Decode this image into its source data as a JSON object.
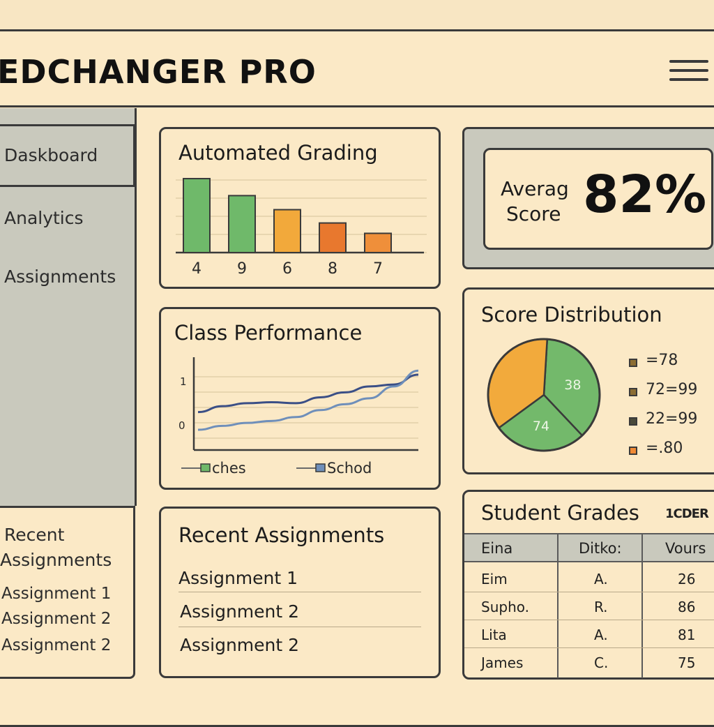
{
  "app": {
    "title": "EDCHANGER PRO"
  },
  "sidebar": {
    "items": [
      {
        "label": "Daskboard"
      },
      {
        "label": "Analytics"
      },
      {
        "label": "Assignments"
      }
    ],
    "recent": {
      "title_line1": "Recent",
      "title_line2": "Assignments",
      "items": [
        "Assignment 1",
        "Assignment 2",
        "Assignment 2"
      ]
    }
  },
  "grading": {
    "title": "Automated Grading",
    "chart_data": {
      "type": "bar",
      "categories": [
        "4",
        "9",
        "6",
        "8",
        "7"
      ],
      "values": [
        100,
        77,
        58,
        40,
        26
      ],
      "colors": [
        "#6fb96a",
        "#6fb96a",
        "#f2a93b",
        "#e8782e",
        "#ef8f3a"
      ]
    }
  },
  "average": {
    "label_line1": "Averag",
    "label_line2": "Score",
    "value": "82%"
  },
  "performance": {
    "title": "Class Performance",
    "chart_data": {
      "type": "line",
      "y_tick_labels": [
        "1",
        "0"
      ],
      "series": [
        {
          "name": "ches",
          "color": "#3b4f86",
          "values": [
            30,
            36,
            39,
            40,
            39,
            45,
            50,
            56,
            58,
            68
          ]
        },
        {
          "name": "Schod",
          "color": "#6f8fba",
          "values": [
            12,
            16,
            19,
            21,
            25,
            32,
            38,
            44,
            56,
            72
          ]
        }
      ]
    }
  },
  "distribution": {
    "title": "Score Distribution",
    "chart_data": {
      "type": "pie",
      "slices": [
        {
          "label": "38",
          "value": 37,
          "color": "#73b96b"
        },
        {
          "label": "74",
          "value": 27,
          "color": "#73b96b"
        },
        {
          "label": "",
          "value": 36,
          "color": "#f2aa3c"
        }
      ],
      "legend": [
        {
          "label": "=78",
          "color": "#8b6d33"
        },
        {
          "label": "72=99",
          "color": "#8b6d33"
        },
        {
          "label": "22=99",
          "color": "#4a4a3a"
        },
        {
          "label": "=.80",
          "color": "#f08a35"
        }
      ]
    }
  },
  "recent_main": {
    "title": "Recent Assignments",
    "items": [
      "Assignment 1",
      "Assignment 2",
      "Assignment 2"
    ]
  },
  "grades": {
    "title": "Student Grades",
    "badge": "1CDER",
    "headers": [
      "Eina",
      "Ditko:",
      "Vours"
    ],
    "rows": [
      [
        "Eim",
        "A.",
        "26"
      ],
      [
        "Supho.",
        "R.",
        "86"
      ],
      [
        "Lita",
        "A.",
        "81"
      ],
      [
        "James",
        "C.",
        "75"
      ]
    ]
  }
}
